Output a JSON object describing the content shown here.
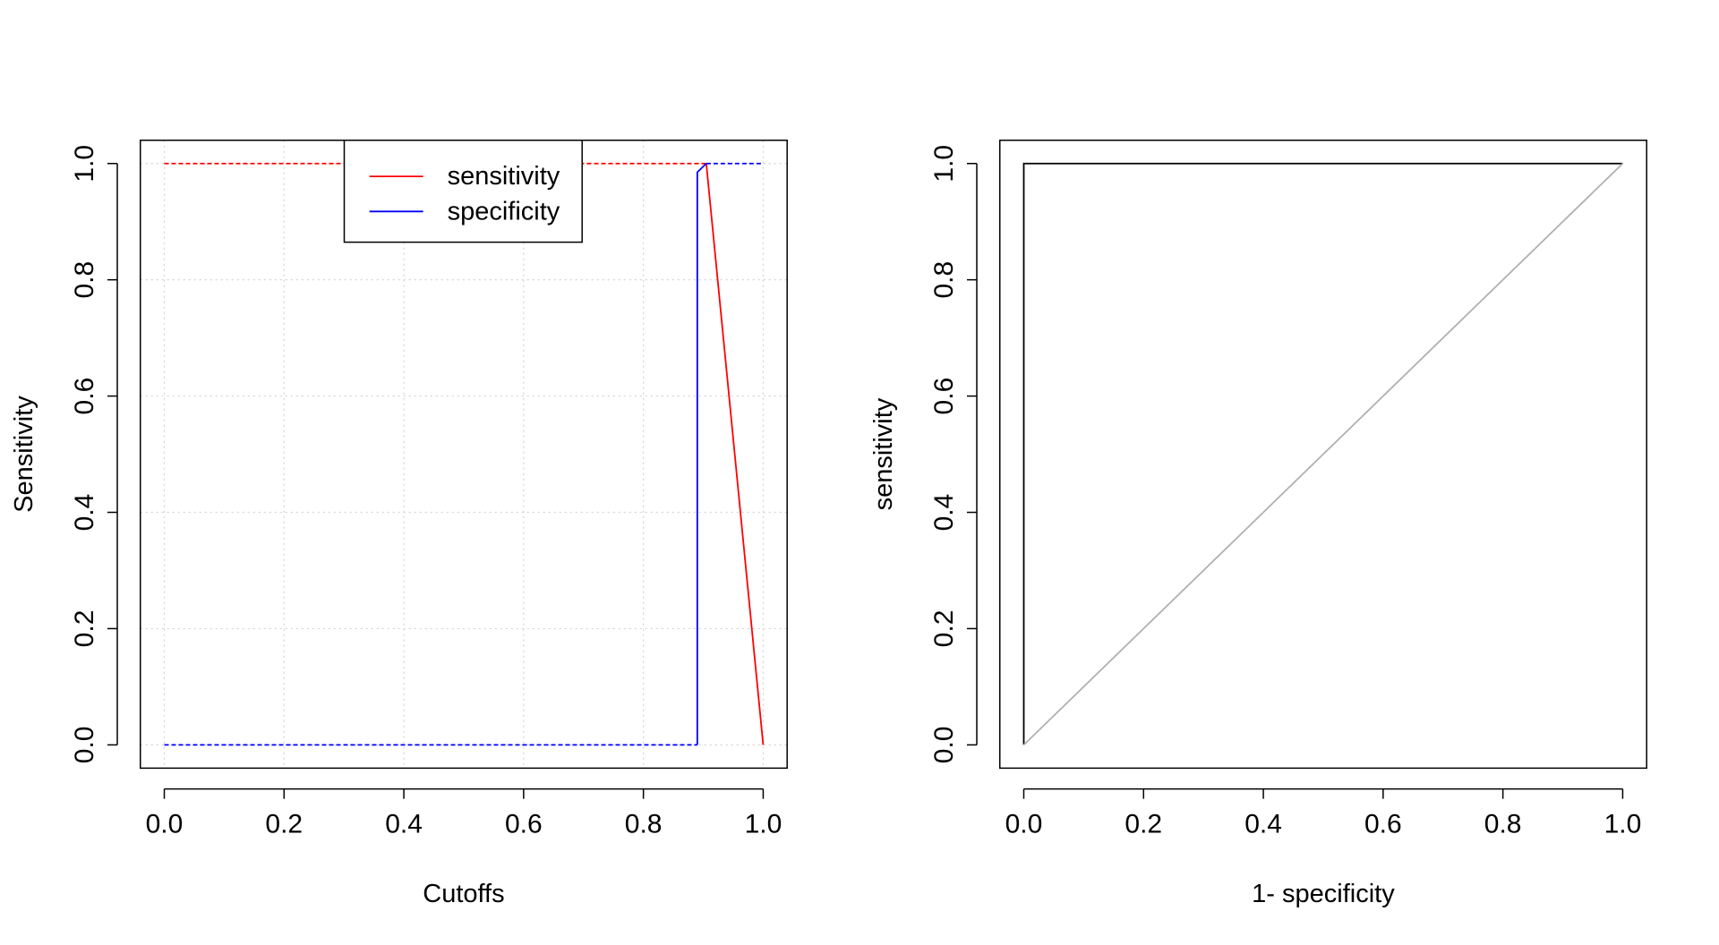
{
  "chart_data": [
    {
      "type": "line",
      "title": "",
      "xlabel": "Cutoffs",
      "ylabel": "Sensitivity",
      "xlim": [
        -0.04,
        1.04
      ],
      "ylim": [
        -0.04,
        1.04
      ],
      "grid": true,
      "x_ticks": [
        "0.0",
        "0.2",
        "0.4",
        "0.6",
        "0.8",
        "1.0"
      ],
      "y_ticks": [
        "0.0",
        "0.2",
        "0.4",
        "0.6",
        "0.8",
        "1.0"
      ],
      "legend": {
        "position": "top-center",
        "entries": [
          {
            "label": "sensitivity",
            "color": "#ff0000"
          },
          {
            "label": "specificity",
            "color": "#0000ff"
          }
        ]
      },
      "series": [
        {
          "name": "sensitivity",
          "color": "#ff0000",
          "style": "solid",
          "points": [
            [
              0.905,
              1.0
            ],
            [
              1.0,
              0.0
            ]
          ]
        },
        {
          "name": "sensitivity",
          "color": "#ff0000",
          "style": "dashed",
          "points": [
            [
              0.0,
              1.0
            ],
            [
              0.905,
              1.0
            ]
          ]
        },
        {
          "name": "specificity",
          "color": "#0000ff",
          "style": "solid",
          "points": [
            [
              0.89,
              0.0
            ],
            [
              0.89,
              0.985
            ],
            [
              0.905,
              1.0
            ]
          ]
        },
        {
          "name": "specificity",
          "color": "#0000ff",
          "style": "dashed",
          "points": [
            [
              0.0,
              0.0
            ],
            [
              0.89,
              0.0
            ]
          ]
        },
        {
          "name": "specificity",
          "color": "#0000ff",
          "style": "dashed",
          "points": [
            [
              0.905,
              1.0
            ],
            [
              1.0,
              1.0
            ]
          ]
        }
      ]
    },
    {
      "type": "line",
      "title": "",
      "xlabel": "1- specificity",
      "ylabel": "sensitivity",
      "xlim": [
        -0.04,
        1.04
      ],
      "ylim": [
        -0.04,
        1.04
      ],
      "grid": false,
      "x_ticks": [
        "0.0",
        "0.2",
        "0.4",
        "0.6",
        "0.8",
        "1.0"
      ],
      "y_ticks": [
        "0.0",
        "0.2",
        "0.4",
        "0.6",
        "0.8",
        "1.0"
      ],
      "series": [
        {
          "color": "#000000",
          "style": "solid",
          "points": [
            [
              0.0,
              0.0
            ],
            [
              0.0,
              1.0
            ],
            [
              1.0,
              1.0
            ]
          ]
        },
        {
          "color": "#b0b0b0",
          "style": "solid",
          "points": [
            [
              0.0,
              0.0
            ],
            [
              1.0,
              1.0
            ]
          ]
        }
      ]
    }
  ]
}
